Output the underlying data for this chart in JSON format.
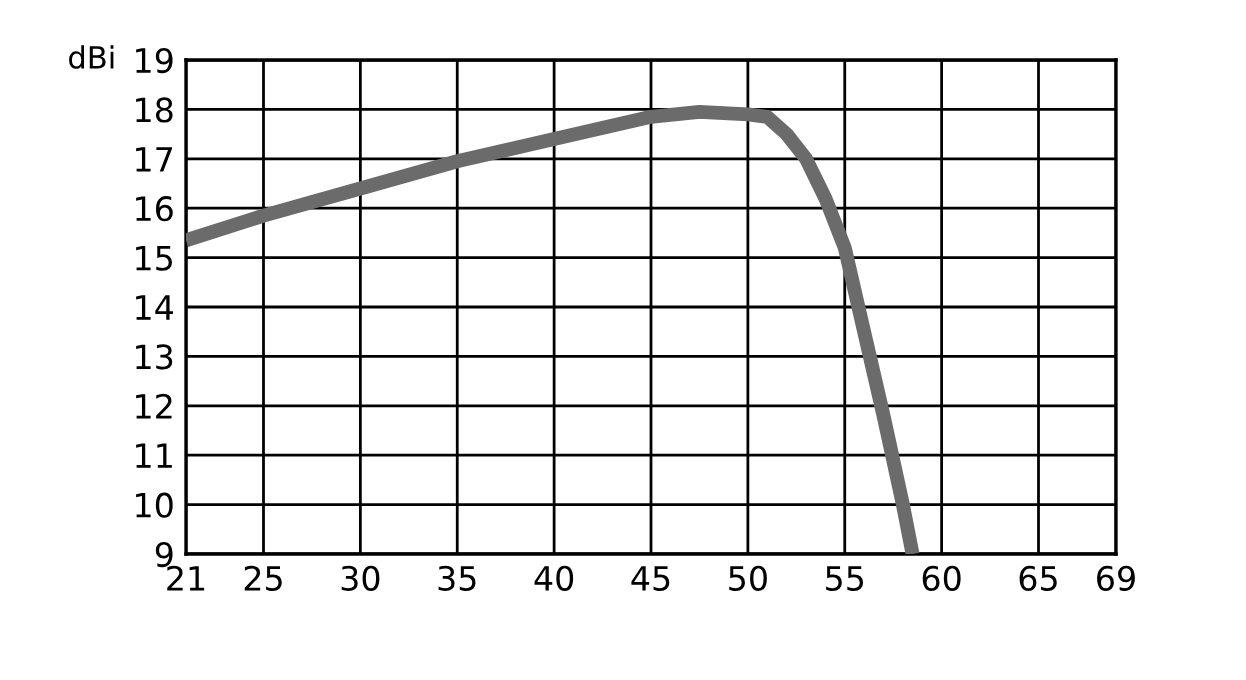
{
  "chart_data": {
    "type": "line",
    "ylabel": "dBi",
    "x": [
      21,
      25,
      30,
      35,
      40,
      45,
      47.5,
      50,
      51,
      52,
      53,
      54,
      55,
      56,
      57,
      58,
      58.5
    ],
    "series": [
      {
        "color": "#6b6b6b",
        "values": [
          15.35,
          15.85,
          16.4,
          16.95,
          17.4,
          17.85,
          17.95,
          17.9,
          17.85,
          17.5,
          17.0,
          16.2,
          15.2,
          13.5,
          11.8,
          10.0,
          9.0
        ]
      }
    ],
    "xlim": [
      21,
      69
    ],
    "xticks": [
      21,
      25,
      30,
      35,
      40,
      45,
      50,
      55,
      60,
      65,
      69
    ],
    "ylim": [
      9,
      19
    ],
    "yticks": [
      9,
      10,
      11,
      12,
      13,
      14,
      15,
      16,
      17,
      18,
      19
    ],
    "grid": true,
    "line_style": "solid",
    "marker": "none"
  }
}
